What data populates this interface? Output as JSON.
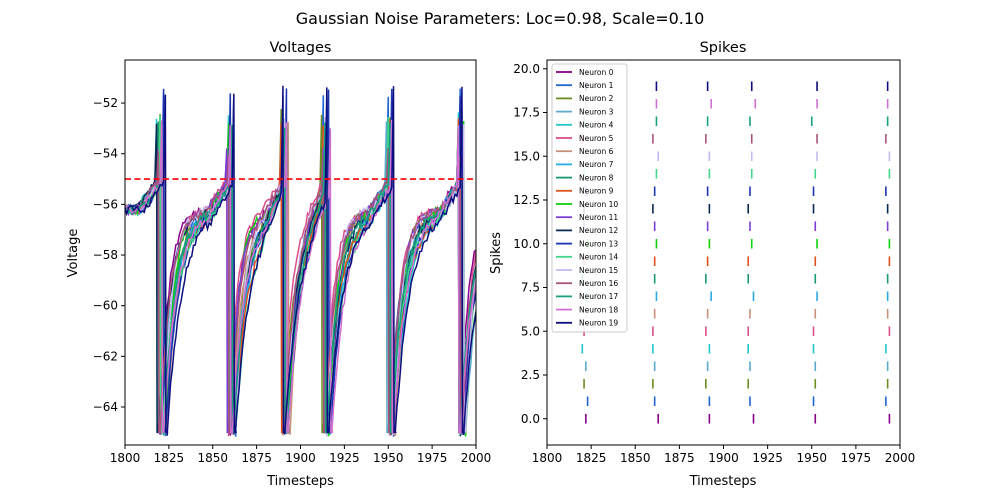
{
  "figure": {
    "suptitle": "Gaussian Noise Parameters: Loc=0.98, Scale=0.10"
  },
  "chart_data": [
    {
      "type": "line",
      "title": "Voltages",
      "xlabel": "Timesteps",
      "ylabel": "Voltage",
      "xlim": [
        1800,
        2000
      ],
      "ylim": [
        -65.5,
        -50.3
      ],
      "xticks": [
        "1800",
        "1825",
        "1850",
        "1875",
        "1900",
        "1925",
        "1950",
        "1975",
        "2000"
      ],
      "yticks": [
        "−64",
        "−62",
        "−60",
        "−58",
        "−56",
        "−54",
        "−52"
      ],
      "threshold": {
        "value": -55,
        "style": "dashed",
        "color": "#ff0000"
      },
      "v_rest": -56.2,
      "v_reset": -65,
      "spike_times_by_neuron": [
        [
          1819,
          1859,
          1892,
          1916,
          1952,
          1990
        ],
        [
          1822,
          1862,
          1890,
          1913,
          1950,
          1991
        ],
        [
          1820,
          1860,
          1889,
          1912,
          1951,
          1992
        ],
        [
          1822,
          1861,
          1891,
          1914,
          1949,
          1993
        ],
        [
          1818,
          1859,
          1890,
          1915,
          1952,
          1990
        ],
        [
          1821,
          1858,
          1889,
          1913,
          1951,
          1991
        ],
        [
          1823,
          1860,
          1893,
          1914,
          1953,
          1992
        ],
        [
          1821,
          1862,
          1890,
          1916,
          1952,
          1990
        ],
        [
          1819,
          1860,
          1891,
          1914,
          1950,
          1991
        ],
        [
          1820,
          1861,
          1889,
          1913,
          1951,
          1990
        ],
        [
          1822,
          1859,
          1892,
          1915,
          1952,
          1993
        ],
        [
          1819,
          1858,
          1891,
          1913,
          1950,
          1992
        ],
        [
          1818,
          1861,
          1890,
          1914,
          1951,
          1990
        ],
        [
          1822,
          1860,
          1892,
          1916,
          1952,
          1991
        ],
        [
          1820,
          1862,
          1890,
          1915,
          1950,
          1992
        ],
        [
          1821,
          1862,
          1891,
          1914,
          1952,
          1993
        ],
        [
          1819,
          1859,
          1890,
          1913,
          1950,
          1991
        ],
        [
          1821,
          1861,
          1891,
          1914,
          1951,
          1990
        ],
        [
          1821,
          1860,
          1892,
          1917,
          1952,
          1990
        ],
        [
          1823,
          1862,
          1890,
          1915,
          1953,
          1992
        ]
      ],
      "spike_peaks": [
        -53.8,
        -51.6,
        -52.4,
        -52.8,
        -52.5,
        -53.7,
        -52.9,
        -52.8,
        -52.6,
        -52.7,
        -52.8,
        -53.7,
        -53.0,
        -51.6,
        -52.5,
        -52.7,
        -53.9,
        -52.9,
        -52.8,
        -51.5
      ]
    },
    {
      "type": "scatter",
      "marker": "vertical-line",
      "title": "Spikes",
      "xlabel": "Timesteps",
      "ylabel": "Spikes",
      "xlim": [
        1800,
        2000
      ],
      "ylim": [
        -1.5,
        20.5
      ],
      "xticks": [
        "1800",
        "1825",
        "1850",
        "1875",
        "1900",
        "1925",
        "1950",
        "1975",
        "2000"
      ],
      "yticks": [
        "0.0",
        "2.5",
        "5.0",
        "7.5",
        "10.0",
        "12.5",
        "15.0",
        "17.5",
        "20.0"
      ],
      "legend": {
        "location": "upper-left"
      },
      "series": [
        {
          "name": "Neuron 0",
          "color": "#8b008b",
          "spikes": [
            1822,
            1863,
            1892,
            1917,
            1952,
            1994
          ]
        },
        {
          "name": "Neuron 1",
          "color": "#1e64d2",
          "spikes": [
            1823,
            1861,
            1892,
            1915,
            1951,
            1992
          ]
        },
        {
          "name": "Neuron 2",
          "color": "#6b8e23",
          "spikes": [
            1821,
            1860,
            1890,
            1914,
            1952,
            1993
          ]
        },
        {
          "name": "Neuron 3",
          "color": "#5aaacc",
          "spikes": [
            1822,
            1861,
            1891,
            1915,
            1952,
            1993
          ]
        },
        {
          "name": "Neuron 4",
          "color": "#20c5c5",
          "spikes": [
            1820,
            1860,
            1892,
            1914,
            1951,
            1992
          ]
        },
        {
          "name": "Neuron 5",
          "color": "#d94f8a",
          "spikes": [
            1821,
            1860,
            1890,
            1914,
            1951,
            1994
          ]
        },
        {
          "name": "Neuron 6",
          "color": "#c8907a",
          "spikes": [
            1822,
            1861,
            1891,
            1915,
            1952,
            1993
          ]
        },
        {
          "name": "Neuron 7",
          "color": "#2aa8e8",
          "spikes": [
            1822,
            1862,
            1893,
            1917,
            1953,
            1993
          ]
        },
        {
          "name": "Neuron 8",
          "color": "#1a9a6a",
          "spikes": [
            1820,
            1861,
            1890,
            1914,
            1952,
            1993
          ]
        },
        {
          "name": "Neuron 9",
          "color": "#e0501c",
          "spikes": [
            1821,
            1861,
            1891,
            1914,
            1952,
            1994
          ]
        },
        {
          "name": "Neuron 10",
          "color": "#10d010",
          "spikes": [
            1823,
            1862,
            1892,
            1916,
            1953,
            1994
          ]
        },
        {
          "name": "Neuron 11",
          "color": "#7a3ed6",
          "spikes": [
            1821,
            1861,
            1891,
            1915,
            1952,
            1993
          ]
        },
        {
          "name": "Neuron 12",
          "color": "#0a2a55",
          "spikes": [
            1821,
            1860,
            1892,
            1914,
            1951,
            1993
          ]
        },
        {
          "name": "Neuron 13",
          "color": "#1c36b0",
          "spikes": [
            1822,
            1861,
            1891,
            1915,
            1951,
            1992
          ]
        },
        {
          "name": "Neuron 14",
          "color": "#3fd68a",
          "spikes": [
            1821,
            1862,
            1892,
            1916,
            1952,
            1994
          ]
        },
        {
          "name": "Neuron 15",
          "color": "#c6b8f0",
          "spikes": [
            1822,
            1863,
            1892,
            1916,
            1953,
            1994
          ]
        },
        {
          "name": "Neuron 16",
          "color": "#a8527a",
          "spikes": [
            1820,
            1860,
            1890,
            1916,
            1953,
            1992
          ]
        },
        {
          "name": "Neuron 17",
          "color": "#18a080",
          "spikes": [
            1821,
            1862,
            1891,
            1915,
            1950,
            1993
          ]
        },
        {
          "name": "Neuron 18",
          "color": "#d070d0",
          "spikes": [
            1822,
            1862,
            1893,
            1918,
            1953,
            1993
          ]
        },
        {
          "name": "Neuron 19",
          "color": "#0d0d80",
          "spikes": [
            1822,
            1862,
            1891,
            1916,
            1953,
            1993
          ]
        }
      ]
    }
  ]
}
